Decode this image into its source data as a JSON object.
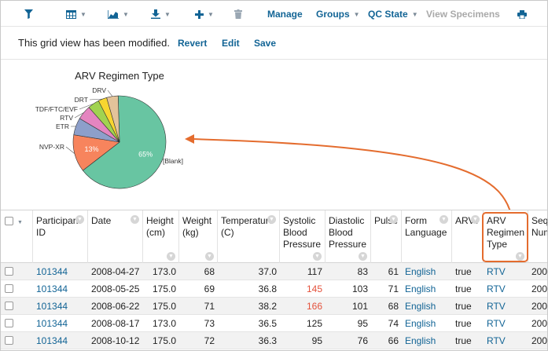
{
  "colors": {
    "link": "#126495",
    "accent": "#e46c2e",
    "red_value": "#e4523c"
  },
  "toolbar": {
    "filter_icon": "filter-icon",
    "grid_icon": "grid-icon",
    "chart_icon": "chart-icon",
    "export_icon": "export-icon",
    "insert_icon": "plus-icon",
    "delete_icon": "trash-icon",
    "manage": "Manage",
    "groups": "Groups",
    "qc_state": "QC State",
    "view_specimens": "View Specimens",
    "print_icon": "print-icon"
  },
  "message": {
    "text": "This grid view has been modified.",
    "revert": "Revert",
    "edit": "Edit",
    "save": "Save"
  },
  "chart_data": {
    "type": "pie",
    "title": "ARV Regimen Type",
    "slices": [
      {
        "label": "[Blank]",
        "value": 65,
        "pct_label": "65%",
        "color": "#68c5a2"
      },
      {
        "label": "NVP-XR",
        "value": 13,
        "pct_label": "13%",
        "color": "#f7845d"
      },
      {
        "label": "ETR",
        "value": 6,
        "pct_label": "",
        "color": "#8d9fca"
      },
      {
        "label": "RTV",
        "value": 5,
        "pct_label": "",
        "color": "#e485c0"
      },
      {
        "label": "TDF/FTC/EVF",
        "value": 4,
        "pct_label": "",
        "color": "#a1d350"
      },
      {
        "label": "DRT",
        "value": 3,
        "pct_label": "",
        "color": "#f8d630"
      },
      {
        "label": "DRV",
        "value": 4,
        "pct_label": "",
        "color": "#e3c39a"
      }
    ]
  },
  "table": {
    "headers": [
      {
        "label": "Participant ID"
      },
      {
        "label": "Date"
      },
      {
        "label": "Height (cm)"
      },
      {
        "label": "Weight (kg)"
      },
      {
        "label": "Temperature (C)"
      },
      {
        "label": "Systolic Blood Pressure"
      },
      {
        "label": "Diastolic Blood Pressure"
      },
      {
        "label": "Pulse"
      },
      {
        "label": "Form Language"
      },
      {
        "label": "ARV?"
      },
      {
        "label": "ARV Regimen Type"
      },
      {
        "label": "Seq Num"
      }
    ],
    "rows": [
      [
        "101344",
        "2008-04-27",
        "173.0",
        "68",
        "37.0",
        "117",
        "83",
        "61",
        "English",
        "true",
        "RTV",
        "200"
      ],
      [
        "101344",
        "2008-05-25",
        "175.0",
        "69",
        "36.8",
        "145",
        "103",
        "71",
        "English",
        "true",
        "RTV",
        "200"
      ],
      [
        "101344",
        "2008-06-22",
        "175.0",
        "71",
        "38.2",
        "166",
        "101",
        "68",
        "English",
        "true",
        "RTV",
        "200"
      ],
      [
        "101344",
        "2008-08-17",
        "173.0",
        "73",
        "36.5",
        "125",
        "95",
        "74",
        "English",
        "true",
        "RTV",
        "200"
      ],
      [
        "101344",
        "2008-10-12",
        "175.0",
        "72",
        "36.3",
        "95",
        "76",
        "66",
        "English",
        "true",
        "RTV",
        "200"
      ]
    ],
    "red_cells": [
      [
        1,
        5
      ],
      [
        2,
        5
      ]
    ]
  }
}
